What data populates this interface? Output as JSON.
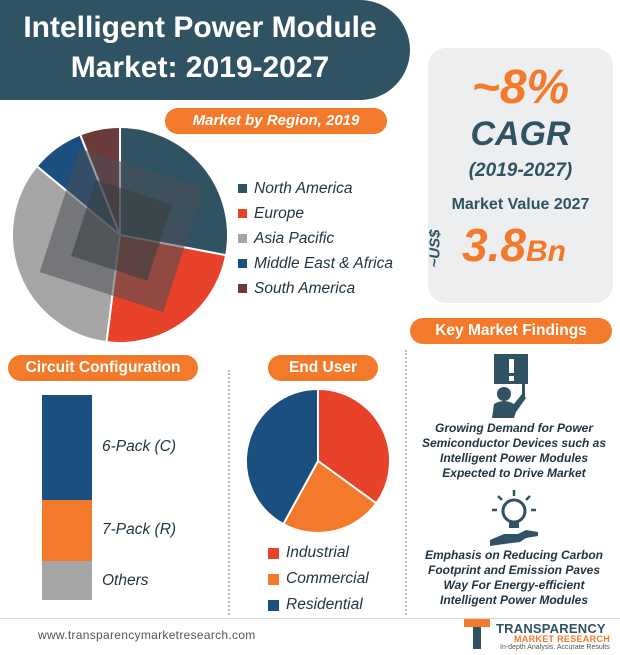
{
  "header": {
    "title_line1": "Intelligent Power Module",
    "title_line2": "Market: 2019-2027"
  },
  "cagr": {
    "value": "~8%",
    "label": "CAGR",
    "period": "(2019-2027)"
  },
  "market_value": {
    "label": "Market Value 2027",
    "currency": "~US$",
    "amount": "3.8",
    "unit": "Bn"
  },
  "key_findings": {
    "title": "Key Market Findings",
    "items": [
      {
        "text": "Growing Demand for Power Semiconductor Devices such as Intelligent Power Modules Expected to Drive Market",
        "icon": "alert-sign-person-icon"
      },
      {
        "text": "Emphasis on Reducing Carbon Footprint and Emission Paves Way For Energy-efficient Intelligent Power Modules",
        "icon": "lightbulb-hand-icon"
      }
    ]
  },
  "footer": {
    "url": "www.transparencymarketresearch.com",
    "brand": "TRANSPARENCY",
    "brand_sub": "MARKET RESEARCH",
    "tagline": "In-depth Analysis. Accurate Results"
  },
  "colors": {
    "navy": "#2f5363",
    "orange": "#f37a2a",
    "red": "#e8432a",
    "gray": "#a6a6a6",
    "dark_blue": "#1a4f7f",
    "maroon": "#6b3a3a"
  },
  "chart_data": [
    {
      "type": "pie",
      "title": "Market by Region, 2019",
      "labels": [
        "North America",
        "Europe",
        "Asia Pacific",
        "Middle East & Africa",
        "South America"
      ],
      "values": [
        28,
        24,
        34,
        8,
        6
      ],
      "colors": [
        "#2f5363",
        "#e8432a",
        "#a6a6a6",
        "#1a4f7f",
        "#6b3a3a"
      ],
      "legend": "right"
    },
    {
      "type": "bar",
      "title": "Circuit Configuration",
      "stacked": true,
      "orientation": "vertical",
      "categories": [
        "6-Pack (C)",
        "7-Pack (R)",
        "Others"
      ],
      "values": [
        51,
        30,
        19
      ],
      "colors": [
        "#1a4f7f",
        "#f37a2a",
        "#a6a6a6"
      ]
    },
    {
      "type": "pie",
      "title": "End User",
      "labels": [
        "Industrial",
        "Commercial",
        "Residential"
      ],
      "values": [
        35,
        23,
        42
      ],
      "colors": [
        "#e8432a",
        "#f37a2a",
        "#1a4f7f"
      ],
      "legend": "bottom"
    }
  ]
}
